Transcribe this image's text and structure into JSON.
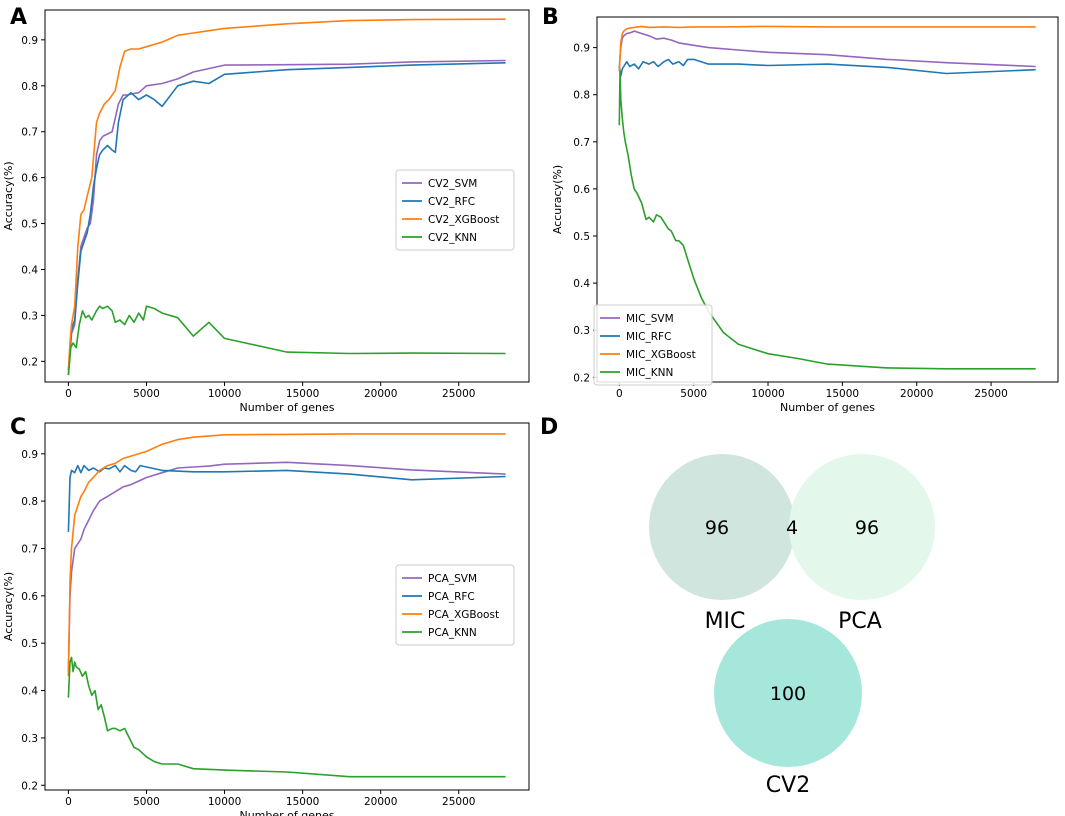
{
  "figure": {
    "panel_labels": [
      "A",
      "B",
      "C",
      "D"
    ]
  },
  "colors": {
    "svm": "#9467bd",
    "rfc": "#1f77b4",
    "xgboost": "#ff7f0e",
    "knn": "#2ca02c"
  },
  "chart_data": [
    {
      "panel": "A",
      "type": "line",
      "xlabel": "Number of genes",
      "ylabel": "Accuracy(%)",
      "xlim": [
        -1500,
        29500
      ],
      "ylim": [
        0.155,
        0.965
      ],
      "xticks": [
        0,
        5000,
        10000,
        15000,
        20000,
        25000
      ],
      "yticks": [
        0.2,
        0.3,
        0.4,
        0.5,
        0.6,
        0.7,
        0.8,
        0.9
      ],
      "legend_position": "center-right",
      "series": [
        {
          "name": "CV2_SVM",
          "color_key": "svm",
          "x": [
            0,
            100,
            200,
            400,
            600,
            800,
            1000,
            1200,
            1400,
            1600,
            1800,
            2000,
            2200,
            2500,
            2800,
            3000,
            3200,
            3500,
            3800,
            4000,
            4500,
            5000,
            6000,
            7000,
            8000,
            10000,
            14000,
            18000,
            22000,
            28000
          ],
          "y": [
            0.18,
            0.22,
            0.26,
            0.28,
            0.38,
            0.45,
            0.47,
            0.49,
            0.5,
            0.55,
            0.65,
            0.68,
            0.69,
            0.695,
            0.7,
            0.73,
            0.76,
            0.78,
            0.78,
            0.782,
            0.785,
            0.8,
            0.805,
            0.815,
            0.83,
            0.845,
            0.846,
            0.847,
            0.852,
            0.855
          ]
        },
        {
          "name": "CV2_RFC",
          "color_key": "rfc",
          "x": [
            0,
            100,
            200,
            400,
            600,
            800,
            1000,
            1200,
            1400,
            1600,
            1800,
            2000,
            2200,
            2500,
            2800,
            3000,
            3200,
            3500,
            4000,
            4500,
            5000,
            5500,
            6000,
            7000,
            8000,
            9000,
            10000,
            14000,
            18000,
            22000,
            28000
          ],
          "y": [
            0.17,
            0.22,
            0.27,
            0.29,
            0.37,
            0.44,
            0.46,
            0.48,
            0.52,
            0.58,
            0.62,
            0.65,
            0.66,
            0.67,
            0.66,
            0.655,
            0.72,
            0.77,
            0.785,
            0.77,
            0.78,
            0.77,
            0.755,
            0.8,
            0.81,
            0.805,
            0.825,
            0.835,
            0.84,
            0.845,
            0.85
          ]
        },
        {
          "name": "CV2_XGBoost",
          "color_key": "xgboost",
          "x": [
            0,
            100,
            200,
            400,
            600,
            800,
            1000,
            1200,
            1500,
            1800,
            2000,
            2300,
            2600,
            3000,
            3300,
            3600,
            4000,
            4500,
            5000,
            5500,
            6000,
            7000,
            8000,
            9000,
            10000,
            14000,
            18000,
            22000,
            28000
          ],
          "y": [
            0.18,
            0.24,
            0.28,
            0.32,
            0.45,
            0.52,
            0.53,
            0.56,
            0.6,
            0.72,
            0.74,
            0.76,
            0.77,
            0.79,
            0.84,
            0.875,
            0.88,
            0.88,
            0.885,
            0.89,
            0.895,
            0.91,
            0.915,
            0.92,
            0.925,
            0.935,
            0.942,
            0.944,
            0.945
          ]
        },
        {
          "name": "CV2_KNN",
          "color_key": "knn",
          "x": [
            0,
            150,
            300,
            500,
            700,
            900,
            1100,
            1300,
            1500,
            1800,
            2000,
            2200,
            2500,
            2800,
            3000,
            3300,
            3600,
            3900,
            4200,
            4500,
            4800,
            5000,
            5500,
            6000,
            7000,
            8000,
            9000,
            10000,
            14000,
            18000,
            22000,
            28000
          ],
          "y": [
            0.17,
            0.23,
            0.24,
            0.23,
            0.28,
            0.31,
            0.295,
            0.3,
            0.29,
            0.31,
            0.32,
            0.315,
            0.32,
            0.31,
            0.285,
            0.29,
            0.28,
            0.3,
            0.285,
            0.305,
            0.29,
            0.32,
            0.315,
            0.305,
            0.295,
            0.255,
            0.285,
            0.25,
            0.22,
            0.217,
            0.218,
            0.217
          ]
        }
      ]
    },
    {
      "panel": "B",
      "type": "line",
      "xlabel": "Number of genes",
      "ylabel": "Accuracy(%)",
      "xlim": [
        -1500,
        29500
      ],
      "ylim": [
        0.19,
        0.965
      ],
      "xticks": [
        0,
        5000,
        10000,
        15000,
        20000,
        25000
      ],
      "yticks": [
        0.2,
        0.3,
        0.4,
        0.5,
        0.6,
        0.7,
        0.8,
        0.9
      ],
      "legend_position": "lower-left",
      "series": [
        {
          "name": "MIC_SVM",
          "color_key": "svm",
          "x": [
            0,
            50,
            100,
            200,
            300,
            500,
            800,
            1000,
            1500,
            2000,
            2500,
            3000,
            3500,
            4000,
            5000,
            6000,
            8000,
            10000,
            14000,
            18000,
            22000,
            28000
          ],
          "y": [
            0.85,
            0.88,
            0.9,
            0.92,
            0.925,
            0.93,
            0.932,
            0.935,
            0.93,
            0.925,
            0.918,
            0.92,
            0.916,
            0.91,
            0.905,
            0.9,
            0.895,
            0.89,
            0.885,
            0.875,
            0.868,
            0.86
          ]
        },
        {
          "name": "MIC_RFC",
          "color_key": "rfc",
          "x": [
            0,
            100,
            200,
            300,
            500,
            700,
            1000,
            1300,
            1600,
            2000,
            2300,
            2600,
            3000,
            3300,
            3600,
            4000,
            4300,
            4600,
            5000,
            6000,
            8000,
            10000,
            14000,
            18000,
            22000,
            28000
          ],
          "y": [
            0.86,
            0.84,
            0.855,
            0.86,
            0.87,
            0.86,
            0.865,
            0.855,
            0.87,
            0.865,
            0.87,
            0.86,
            0.87,
            0.875,
            0.865,
            0.87,
            0.862,
            0.875,
            0.875,
            0.865,
            0.865,
            0.862,
            0.865,
            0.858,
            0.845,
            0.853
          ]
        },
        {
          "name": "MIC_XGBoost",
          "color_key": "xgboost",
          "x": [
            0,
            50,
            100,
            200,
            300,
            500,
            800,
            1000,
            1500,
            2000,
            3000,
            4000,
            5000,
            7000,
            10000,
            14000,
            18000,
            22000,
            28000
          ],
          "y": [
            0.85,
            0.88,
            0.91,
            0.93,
            0.935,
            0.94,
            0.942,
            0.943,
            0.945,
            0.943,
            0.944,
            0.943,
            0.944,
            0.944,
            0.945,
            0.944,
            0.944,
            0.944,
            0.944
          ]
        },
        {
          "name": "MIC_KNN",
          "color_key": "knn",
          "x": [
            0,
            50,
            100,
            200,
            300,
            400,
            600,
            800,
            1000,
            1200,
            1500,
            1800,
            2000,
            2300,
            2500,
            2800,
            3000,
            3300,
            3500,
            3800,
            4000,
            4300,
            4600,
            5000,
            5500,
            6000,
            7000,
            8000,
            9000,
            10000,
            12000,
            14000,
            18000,
            22000,
            28000
          ],
          "y": [
            0.735,
            0.85,
            0.79,
            0.75,
            0.72,
            0.7,
            0.67,
            0.63,
            0.6,
            0.59,
            0.57,
            0.535,
            0.54,
            0.53,
            0.545,
            0.54,
            0.53,
            0.515,
            0.51,
            0.49,
            0.49,
            0.48,
            0.45,
            0.41,
            0.37,
            0.34,
            0.295,
            0.27,
            0.26,
            0.25,
            0.24,
            0.228,
            0.22,
            0.218,
            0.218
          ]
        }
      ]
    },
    {
      "panel": "C",
      "type": "line",
      "xlabel": "Number of genes",
      "ylabel": "Accuracy(%)",
      "xlim": [
        -1500,
        29500
      ],
      "ylim": [
        0.19,
        0.965
      ],
      "xticks": [
        0,
        5000,
        10000,
        15000,
        20000,
        25000
      ],
      "yticks": [
        0.2,
        0.3,
        0.4,
        0.5,
        0.6,
        0.7,
        0.8,
        0.9
      ],
      "legend_position": "center-right",
      "series": [
        {
          "name": "PCA_SVM",
          "color_key": "svm",
          "x": [
            0,
            100,
            200,
            400,
            600,
            800,
            1000,
            1300,
            1600,
            2000,
            2500,
            3000,
            3500,
            4000,
            5000,
            6000,
            7000,
            8000,
            9000,
            10000,
            14000,
            18000,
            22000,
            28000
          ],
          "y": [
            0.44,
            0.6,
            0.65,
            0.7,
            0.71,
            0.72,
            0.74,
            0.76,
            0.78,
            0.8,
            0.81,
            0.82,
            0.83,
            0.835,
            0.85,
            0.86,
            0.87,
            0.872,
            0.874,
            0.878,
            0.882,
            0.875,
            0.866,
            0.857
          ]
        },
        {
          "name": "PCA_RFC",
          "color_key": "rfc",
          "x": [
            0,
            100,
            200,
            400,
            600,
            800,
            1000,
            1300,
            1600,
            2000,
            2300,
            2600,
            3000,
            3300,
            3600,
            4000,
            4300,
            4600,
            5000,
            6000,
            8000,
            10000,
            14000,
            18000,
            22000,
            28000
          ],
          "y": [
            0.735,
            0.85,
            0.865,
            0.86,
            0.875,
            0.86,
            0.875,
            0.865,
            0.87,
            0.862,
            0.87,
            0.868,
            0.875,
            0.862,
            0.875,
            0.865,
            0.862,
            0.875,
            0.872,
            0.865,
            0.862,
            0.862,
            0.865,
            0.857,
            0.845,
            0.852
          ]
        },
        {
          "name": "PCA_XGBoost",
          "color_key": "xgboost",
          "x": [
            0,
            100,
            200,
            400,
            600,
            800,
            1000,
            1300,
            1600,
            2000,
            2500,
            3000,
            3500,
            4000,
            5000,
            6000,
            7000,
            8000,
            10000,
            14000,
            18000,
            22000,
            28000
          ],
          "y": [
            0.43,
            0.63,
            0.7,
            0.77,
            0.79,
            0.81,
            0.82,
            0.84,
            0.85,
            0.865,
            0.875,
            0.88,
            0.89,
            0.895,
            0.905,
            0.92,
            0.93,
            0.935,
            0.94,
            0.941,
            0.942,
            0.942,
            0.942
          ]
        },
        {
          "name": "PCA_KNN",
          "color_key": "knn",
          "x": [
            0,
            100,
            200,
            300,
            400,
            500,
            700,
            900,
            1100,
            1300,
            1500,
            1700,
            1900,
            2100,
            2300,
            2500,
            2800,
            3000,
            3300,
            3600,
            3900,
            4200,
            4500,
            5000,
            5500,
            6000,
            7000,
            8000,
            10000,
            14000,
            18000,
            22000,
            28000
          ],
          "y": [
            0.385,
            0.46,
            0.47,
            0.44,
            0.46,
            0.45,
            0.445,
            0.43,
            0.44,
            0.41,
            0.39,
            0.4,
            0.36,
            0.37,
            0.345,
            0.315,
            0.32,
            0.32,
            0.315,
            0.32,
            0.3,
            0.28,
            0.275,
            0.26,
            0.25,
            0.245,
            0.245,
            0.235,
            0.232,
            0.228,
            0.218,
            0.218,
            0.218
          ]
        }
      ]
    },
    {
      "panel": "D",
      "type": "venn",
      "sets": [
        {
          "name": "MIC",
          "unique": 96,
          "color": "#cfe5dd"
        },
        {
          "name": "PCA",
          "unique": 96,
          "color": "#e3f7ea"
        },
        {
          "name": "CV2",
          "unique": 100,
          "color": "#a6e7dc"
        }
      ],
      "overlaps": [
        {
          "sets": [
            "MIC",
            "PCA"
          ],
          "value": 4
        }
      ]
    }
  ]
}
